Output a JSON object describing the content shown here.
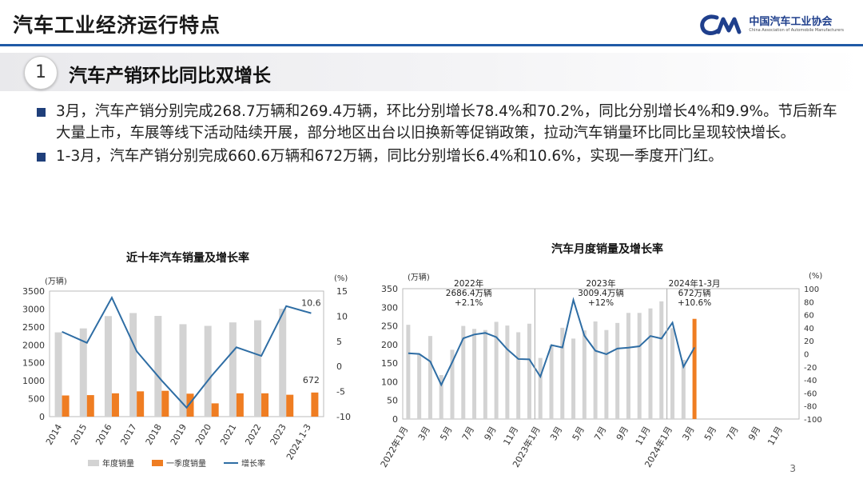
{
  "header": {
    "title": "汽车工业经济运行特点",
    "org_cn": "中国汽车工业协会",
    "org_en": "China Association of Automobile Manufacturers"
  },
  "section": {
    "number": "1",
    "title": "汽车产销环比同比双增长"
  },
  "bullets": [
    "3月，汽车产销分别完成268.7万辆和269.4万辆，环比分别增长78.4%和70.2%，同比分别增长4%和9.9%。节后新车大量上市，车展等线下活动陆续开展，部分地区出台以旧换新等促销政策，拉动汽车销量环比同比呈现较快增长。",
    "1-3月，汽车产销分别完成660.6万辆和672万辆，同比分别增长6.4%和10.6%，实现一季度开门红。"
  ],
  "page_number": "3",
  "colors": {
    "annual": "#d3d3d3",
    "q1": "#ef7d22",
    "growth": "#2e6da4",
    "accent": "#1f5aa6"
  },
  "chart_data": [
    {
      "type": "bar",
      "title": "近十年汽车销量及增长率",
      "left_unit": "(万辆)",
      "right_unit": "(%)",
      "categories": [
        "2014",
        "2015",
        "2016",
        "2017",
        "2018",
        "2019",
        "2020",
        "2021",
        "2022",
        "2023",
        "2024.1-3"
      ],
      "ylim": [
        0,
        3500
      ],
      "yticks": [
        0,
        500,
        1000,
        1500,
        2000,
        2500,
        3000,
        3500
      ],
      "y2lim": [
        -10,
        15
      ],
      "y2ticks": [
        -10,
        -5,
        0,
        5,
        10,
        15
      ],
      "series": [
        {
          "name": "年度销量",
          "kind": "bar",
          "values": [
            2349,
            2460,
            2803,
            2888,
            2808,
            2577,
            2531,
            2627,
            2686,
            3009,
            null
          ]
        },
        {
          "name": "一季度销量",
          "kind": "bar",
          "values": [
            590,
            600,
            650,
            705,
            720,
            640,
            370,
            650,
            650,
            610,
            672
          ]
        },
        {
          "name": "增长率",
          "kind": "line",
          "axis": "right",
          "values": [
            6.9,
            4.7,
            13.7,
            3.0,
            -2.8,
            -8.2,
            -1.9,
            3.8,
            2.1,
            12.0,
            10.6
          ]
        }
      ],
      "annotations": [
        {
          "text": "10.6",
          "category": "2024.1-3"
        },
        {
          "text": "672",
          "category": "2024.1-3"
        }
      ],
      "legend": [
        "年度销量",
        "一季度销量",
        "增长率"
      ],
      "legend_position": "bottom"
    },
    {
      "type": "bar",
      "title": "汽车月度销量及增长率",
      "left_unit": "(万辆)",
      "right_unit": "(%)",
      "ylim": [
        0,
        350
      ],
      "yticks": [
        0,
        50,
        100,
        150,
        200,
        250,
        300,
        350
      ],
      "y2lim": [
        -100,
        100
      ],
      "y2ticks": [
        -100,
        -80,
        -60,
        -40,
        -20,
        0,
        20,
        40,
        60,
        80,
        100
      ],
      "xticklabels": [
        "2022年1月",
        "3月",
        "5月",
        "7月",
        "9月",
        "11月",
        "2023年1月",
        "3月",
        "5月",
        "7月",
        "9月",
        "11月",
        "2024年1月",
        "3月",
        "5月",
        "7月",
        "9月",
        "11月"
      ],
      "months": [
        "2022-01",
        "2022-02",
        "2022-03",
        "2022-04",
        "2022-05",
        "2022-06",
        "2022-07",
        "2022-08",
        "2022-09",
        "2022-10",
        "2022-11",
        "2022-12",
        "2023-01",
        "2023-02",
        "2023-03",
        "2023-04",
        "2023-05",
        "2023-06",
        "2023-07",
        "2023-08",
        "2023-09",
        "2023-10",
        "2023-11",
        "2023-12",
        "2024-01",
        "2024-02",
        "2024-03"
      ],
      "sales": [
        253,
        174,
        223,
        118,
        186,
        250,
        242,
        239,
        261,
        251,
        233,
        256,
        164,
        198,
        245,
        216,
        238,
        262,
        239,
        258,
        285,
        285,
        297,
        316,
        244,
        159,
        269
      ],
      "growth": [
        0.9,
        -0.2,
        -11.7,
        -47.6,
        -12.6,
        23.8,
        29.7,
        32.1,
        25.7,
        6.9,
        -7.9,
        -8.4,
        -35.0,
        13.5,
        9.7,
        82.7,
        27.9,
        4.8,
        -0.5,
        8.2,
        9.5,
        11.6,
        27.4,
        23.5,
        47.9,
        -19.9,
        9.9
      ],
      "annotations": [
        {
          "line1": "2022年",
          "line2": "2686.4万辆",
          "line3": "+2.1%"
        },
        {
          "line1": "2023年",
          "line2": "3009.4万辆",
          "line3": "+12%"
        },
        {
          "line1": "2024年1-3月",
          "line2": "672万辆",
          "line3": "+10.6%"
        }
      ]
    }
  ]
}
